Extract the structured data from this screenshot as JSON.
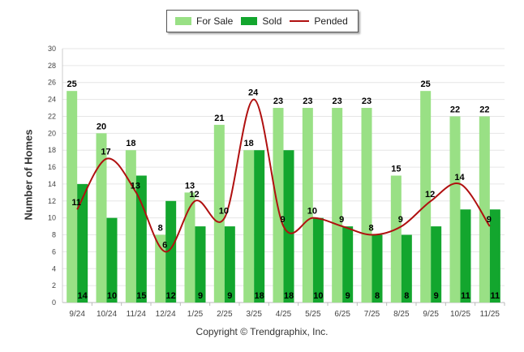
{
  "chart_data": {
    "type": "bar",
    "categories": [
      "9/24",
      "10/24",
      "11/24",
      "12/24",
      "1/25",
      "2/25",
      "3/25",
      "4/25",
      "5/25",
      "6/25",
      "7/25",
      "8/25",
      "9/25",
      "10/25",
      "11/25"
    ],
    "series": [
      {
        "name": "For Sale",
        "type": "bar",
        "color": "#99e085",
        "values": [
          25,
          20,
          18,
          8,
          13,
          21,
          18,
          23,
          23,
          23,
          23,
          15,
          25,
          22,
          22
        ]
      },
      {
        "name": "Sold",
        "type": "bar",
        "color": "#13a62e",
        "values": [
          14,
          10,
          15,
          12,
          9,
          9,
          18,
          18,
          10,
          9,
          8,
          8,
          9,
          11,
          11
        ]
      },
      {
        "name": "Pended",
        "type": "line",
        "color": "#b01010",
        "values": [
          11,
          17,
          13,
          6,
          12,
          10,
          24,
          9,
          10,
          9,
          8,
          9,
          12,
          14,
          9
        ]
      }
    ],
    "ylabel": "Number of Homes",
    "ylim": [
      0,
      30
    ],
    "yticks": [
      0,
      2,
      4,
      6,
      8,
      10,
      12,
      14,
      16,
      18,
      20,
      22,
      24,
      26,
      28,
      30
    ],
    "grid": true,
    "legend_position": "top-center"
  },
  "legend": {
    "for_sale": "For Sale",
    "sold": "Sold",
    "pended": "Pended"
  },
  "footer": {
    "copyright": "Copyright © Trendgraphix, Inc."
  }
}
